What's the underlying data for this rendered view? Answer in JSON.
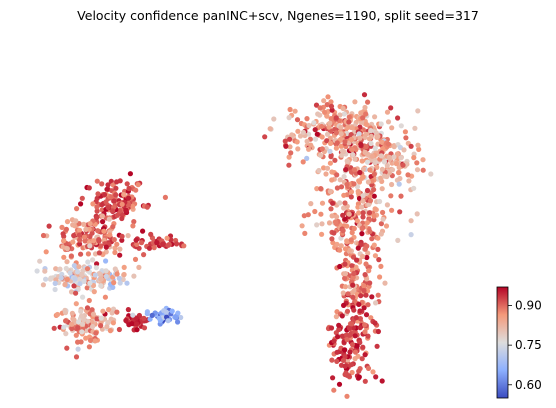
{
  "chart_data": {
    "type": "scatter",
    "title": "Velocity confidence panINC+scv, Ngenes=1190, split seed=317",
    "xlabel": "",
    "ylabel": "",
    "axes_visible": false,
    "grid": false,
    "colormap": "coolwarm",
    "colorbar": {
      "min": 0.55,
      "max": 0.97,
      "ticks": [
        0.6,
        0.75,
        0.9
      ],
      "tick_labels": [
        "0.60",
        "0.75",
        "0.90"
      ],
      "placement": "bottom-right"
    },
    "point_colors": {
      "low": "#3b4cc0",
      "mid": "#dddddd",
      "high": "#b40426"
    },
    "seed": 317,
    "clusters": [
      {
        "center": [
          0.67,
          0.74
        ],
        "spread": [
          0.06,
          0.045
        ],
        "n": 260,
        "mean": 0.86,
        "sd": 0.05
      },
      {
        "center": [
          0.71,
          0.53
        ],
        "spread": [
          0.045,
          0.09
        ],
        "n": 230,
        "mean": 0.87,
        "sd": 0.05
      },
      {
        "center": [
          0.76,
          0.66
        ],
        "spread": [
          0.045,
          0.04
        ],
        "n": 170,
        "mean": 0.84,
        "sd": 0.05
      },
      {
        "center": [
          0.71,
          0.3
        ],
        "spread": [
          0.025,
          0.12
        ],
        "n": 170,
        "mean": 0.89,
        "sd": 0.04
      },
      {
        "center": [
          0.7,
          0.12
        ],
        "spread": [
          0.025,
          0.06
        ],
        "n": 110,
        "mean": 0.93,
        "sd": 0.03
      },
      {
        "center": [
          0.19,
          0.54
        ],
        "spread": [
          0.03,
          0.03
        ],
        "n": 130,
        "mean": 0.92,
        "sd": 0.03
      },
      {
        "center": [
          0.13,
          0.43
        ],
        "spread": [
          0.04,
          0.03
        ],
        "n": 150,
        "mean": 0.89,
        "sd": 0.04
      },
      {
        "center": [
          0.28,
          0.42
        ],
        "spread": [
          0.025,
          0.008
        ],
        "n": 45,
        "mean": 0.93,
        "sd": 0.02
      },
      {
        "center": [
          0.12,
          0.32
        ],
        "spread": [
          0.045,
          0.02
        ],
        "n": 150,
        "mean": 0.78,
        "sd": 0.06
      },
      {
        "center": [
          0.12,
          0.19
        ],
        "spread": [
          0.035,
          0.03
        ],
        "n": 130,
        "mean": 0.84,
        "sd": 0.05
      },
      {
        "center": [
          0.23,
          0.19
        ],
        "spread": [
          0.015,
          0.012
        ],
        "n": 40,
        "mean": 0.94,
        "sd": 0.02
      },
      {
        "center": [
          0.29,
          0.21
        ],
        "spread": [
          0.02,
          0.01
        ],
        "n": 45,
        "mean": 0.65,
        "sd": 0.05
      }
    ]
  }
}
